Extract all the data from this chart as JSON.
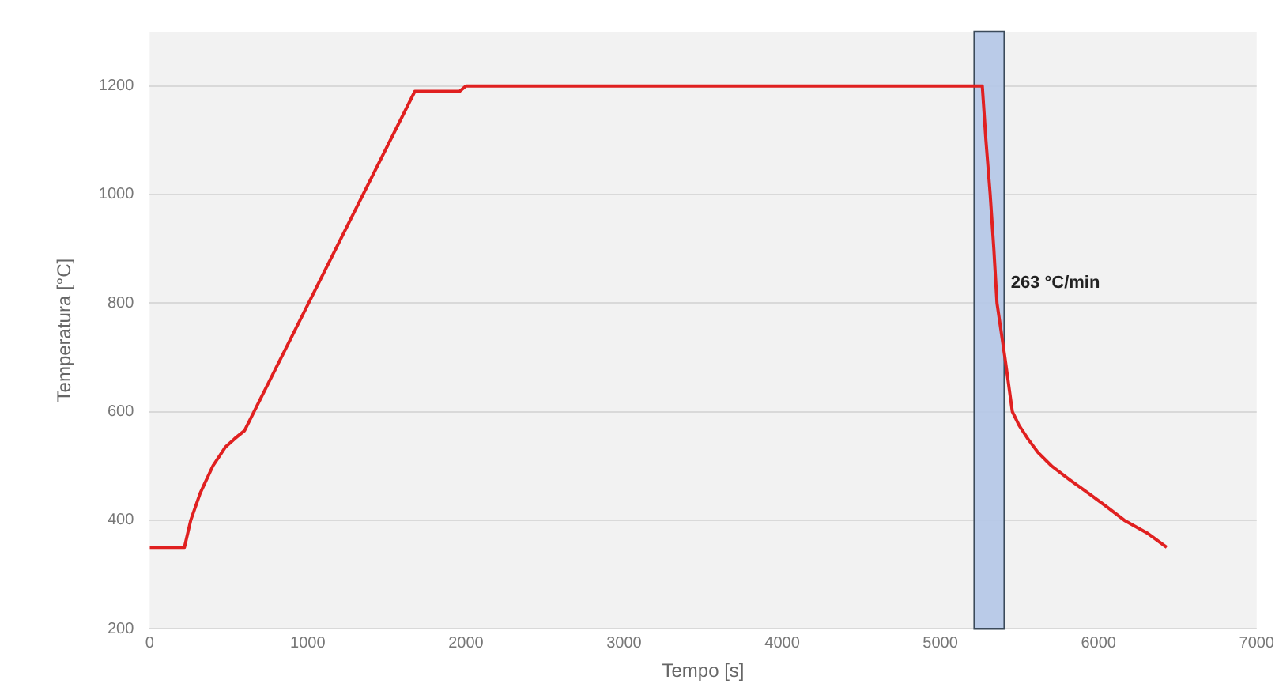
{
  "chart_data": {
    "type": "line",
    "xlabel": "Tempo [s]",
    "ylabel": "Temperatura [°C]",
    "x": [
      0,
      220,
      260,
      320,
      400,
      480,
      537,
      600,
      1005,
      1677,
      1960,
      2000,
      5265,
      5288,
      5315,
      5338,
      5358,
      5408,
      5455,
      5497,
      5553,
      5617,
      5703,
      5815,
      5935,
      6050,
      6163,
      6315,
      6431
    ],
    "series": [
      {
        "color": "#e02020",
        "values": [
          350,
          350,
          400,
          450,
          500,
          535,
          550,
          565,
          800,
          1190,
          1190,
          1200,
          1200,
          1100,
          1000,
          900,
          800,
          700,
          600,
          575,
          550,
          525,
          500,
          475,
          450,
          425,
          400,
          375,
          350
        ]
      }
    ],
    "xlim": [
      0,
      7000
    ],
    "xticks": [
      0,
      1000,
      2000,
      3000,
      4000,
      5000,
      6000,
      7000
    ],
    "ylim": [
      200,
      1300
    ],
    "yticks": [
      200,
      400,
      600,
      800,
      1000,
      1200
    ],
    "grid": "y",
    "legend": false,
    "marker": "none",
    "line_style": "solid",
    "bands": [
      {
        "axis": "x",
        "from": 5215,
        "to": 5405,
        "label": "263 °C/min",
        "color": "#b4c7e7"
      }
    ]
  }
}
